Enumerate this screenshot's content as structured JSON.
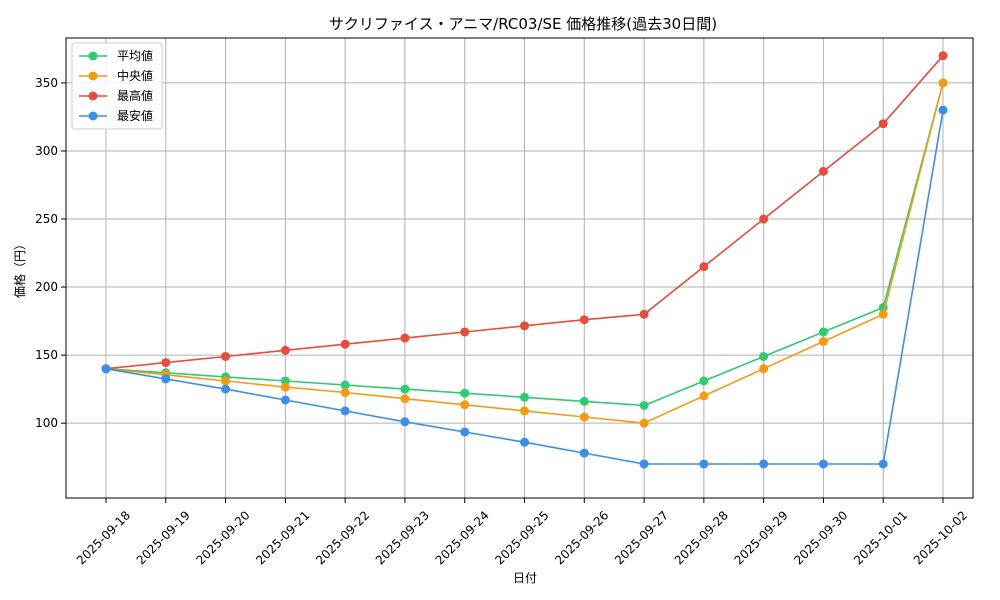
{
  "chart_data": {
    "type": "line",
    "title": "サクリファイス・アニマ/RC03/SE 価格推移(過去30日間)",
    "xlabel": "日付",
    "ylabel": "価格（円）",
    "categories": [
      "2025-09-18",
      "2025-09-19",
      "2025-09-20",
      "2025-09-21",
      "2025-09-22",
      "2025-09-23",
      "2025-09-24",
      "2025-09-25",
      "2025-09-26",
      "2025-09-27",
      "2025-09-28",
      "2025-09-29",
      "2025-09-30",
      "2025-10-01",
      "2025-10-02"
    ],
    "ylim": [
      45,
      383
    ],
    "yticks": [
      100,
      150,
      200,
      250,
      300,
      350
    ],
    "grid": true,
    "legend_position": "top-left",
    "series": [
      {
        "name": "平均値",
        "color": "#2ecc71",
        "values": [
          140,
          137,
          134,
          131,
          128,
          125,
          122,
          119,
          116,
          113,
          131,
          149,
          167,
          185,
          350
        ]
      },
      {
        "name": "中央値",
        "color": "#f39c12",
        "values": [
          140,
          135.5,
          131,
          126.5,
          122.5,
          118,
          113.5,
          109,
          104.5,
          100,
          120,
          140,
          160,
          180,
          350
        ]
      },
      {
        "name": "最高値",
        "color": "#e74c3c",
        "values": [
          140,
          144.5,
          149,
          153.5,
          158,
          162.5,
          167,
          171.5,
          176,
          180,
          215,
          250,
          285,
          320,
          370
        ]
      },
      {
        "name": "最安値",
        "color": "#3b8fe8",
        "values": [
          140,
          132.5,
          125,
          117,
          109,
          101,
          93.5,
          86,
          78,
          70,
          70,
          70,
          70,
          70,
          330
        ]
      }
    ]
  }
}
